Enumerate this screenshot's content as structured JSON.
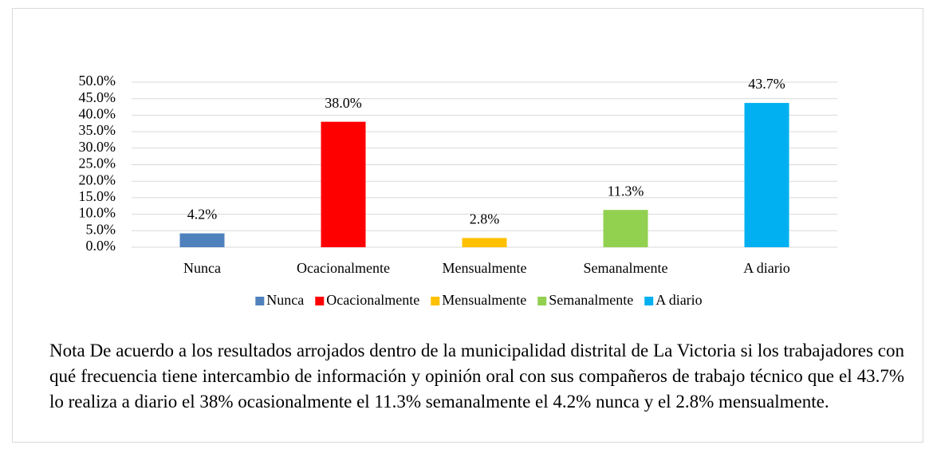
{
  "chart_data": {
    "type": "bar",
    "categories": [
      "Nunca",
      "Ocacionalmente",
      "Mensualmente",
      "Semanalmente",
      "A diario"
    ],
    "values": [
      4.2,
      38.0,
      2.8,
      11.3,
      43.7
    ],
    "value_labels": [
      "4.2%",
      "38.0%",
      "2.8%",
      "11.3%",
      "43.7%"
    ],
    "colors": [
      "#4f81bd",
      "#ff0000",
      "#ffc000",
      "#92d050",
      "#00b0f0"
    ],
    "ylim": [
      0,
      50
    ],
    "yticks": [
      {
        "value": 0,
        "label": "0.0%"
      },
      {
        "value": 5,
        "label": "5.0%"
      },
      {
        "value": 10,
        "label": "10.0%"
      },
      {
        "value": 15,
        "label": "15.0%"
      },
      {
        "value": 20,
        "label": "20.0%"
      },
      {
        "value": 25,
        "label": "25.0%"
      },
      {
        "value": 30,
        "label": "30.0%"
      },
      {
        "value": 35,
        "label": "35.0%"
      },
      {
        "value": 40,
        "label": "40.0%"
      },
      {
        "value": 45,
        "label": "45.0%"
      },
      {
        "value": 50,
        "label": "50.0%"
      }
    ],
    "grid": true,
    "legend": "bottom"
  },
  "note": "Nota De acuerdo a los resultados arrojados dentro de la municipalidad distrital de  La Victoria si los trabajadores con qué frecuencia tiene intercambio de información y opinión oral con sus compañeros de trabajo técnico que el 43.7% lo realiza a diario el 38% ocasionalmente el 11.3% semanalmente el 4.2% nunca y el 2.8% mensualmente."
}
